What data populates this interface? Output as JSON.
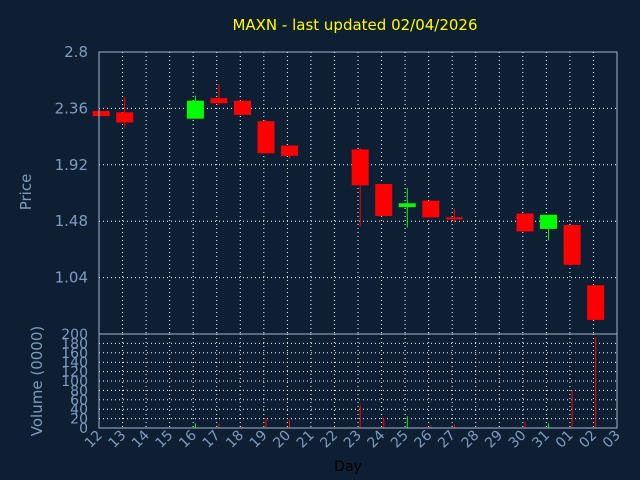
{
  "chart_data": {
    "type": "candlestick",
    "title": "MAXN - last updated 02/04/2026",
    "price_label": "Price",
    "volume_label": "Volume (0000)",
    "xlabel": "Day",
    "price_ylim": [
      0.6,
      2.8
    ],
    "price_ticks": [
      "1.04",
      "1.48",
      "1.92",
      "2.36",
      "2.8"
    ],
    "volume_ylim": [
      0,
      200
    ],
    "volume_ticks": [
      "0",
      "20",
      "40",
      "60",
      "80",
      "100",
      "120",
      "140",
      "160",
      "180",
      "200"
    ],
    "grid": true,
    "x_ticks": [
      "12",
      "13",
      "14",
      "15",
      "16",
      "17",
      "18",
      "19",
      "20",
      "21",
      "22",
      "23",
      "24",
      "25",
      "26",
      "27",
      "28",
      "29",
      "30",
      "31",
      "01",
      "02",
      "03"
    ],
    "colors": {
      "up": "#00ff00",
      "down": "#ff0000",
      "grid": "#ffffff",
      "frame": "#a0b4c8",
      "background": "#0f1f33"
    },
    "candles": [
      {
        "day": "12",
        "open": 2.34,
        "high": 2.34,
        "low": 2.3,
        "close": 2.3
      },
      {
        "day": "13",
        "open": 2.33,
        "high": 2.45,
        "low": 2.21,
        "close": 2.25
      },
      {
        "day": "16",
        "open": 2.28,
        "high": 2.46,
        "low": 2.28,
        "close": 2.42
      },
      {
        "day": "17",
        "open": 2.44,
        "high": 2.55,
        "low": 2.39,
        "close": 2.4
      },
      {
        "day": "18",
        "open": 2.42,
        "high": 2.42,
        "low": 2.31,
        "close": 2.31
      },
      {
        "day": "19",
        "open": 2.26,
        "high": 2.27,
        "low": 2.01,
        "close": 2.01
      },
      {
        "day": "20",
        "open": 2.07,
        "high": 2.07,
        "low": 1.97,
        "close": 1.99
      },
      {
        "day": "23",
        "open": 2.04,
        "high": 2.05,
        "low": 1.44,
        "close": 1.76
      },
      {
        "day": "24",
        "open": 1.77,
        "high": 1.77,
        "low": 1.52,
        "close": 1.52
      },
      {
        "day": "25",
        "open": 1.59,
        "high": 1.74,
        "low": 1.43,
        "close": 1.62
      },
      {
        "day": "26",
        "open": 1.64,
        "high": 1.64,
        "low": 1.51,
        "close": 1.51
      },
      {
        "day": "27",
        "open": 1.51,
        "high": 1.58,
        "low": 1.47,
        "close": 1.5
      },
      {
        "day": "30",
        "open": 1.54,
        "high": 1.54,
        "low": 1.4,
        "close": 1.4
      },
      {
        "day": "31",
        "open": 1.42,
        "high": 1.53,
        "low": 1.33,
        "close": 1.53
      },
      {
        "day": "01",
        "open": 1.45,
        "high": 1.45,
        "low": 1.14,
        "close": 1.14
      },
      {
        "day": "02",
        "open": 0.98,
        "high": 0.98,
        "low": 0.71,
        "close": 0.71
      }
    ],
    "volume": [
      {
        "day": "12",
        "value": 0
      },
      {
        "day": "13",
        "value": 0
      },
      {
        "day": "16",
        "value": 10
      },
      {
        "day": "17",
        "value": 8
      },
      {
        "day": "18",
        "value": 4
      },
      {
        "day": "19",
        "value": 20
      },
      {
        "day": "20",
        "value": 18
      },
      {
        "day": "23",
        "value": 50
      },
      {
        "day": "24",
        "value": 22
      },
      {
        "day": "25",
        "value": 25
      },
      {
        "day": "26",
        "value": 5
      },
      {
        "day": "27",
        "value": 8
      },
      {
        "day": "30",
        "value": 12
      },
      {
        "day": "31",
        "value": 10
      },
      {
        "day": "01",
        "value": 80
      },
      {
        "day": "02",
        "value": 193
      }
    ]
  }
}
